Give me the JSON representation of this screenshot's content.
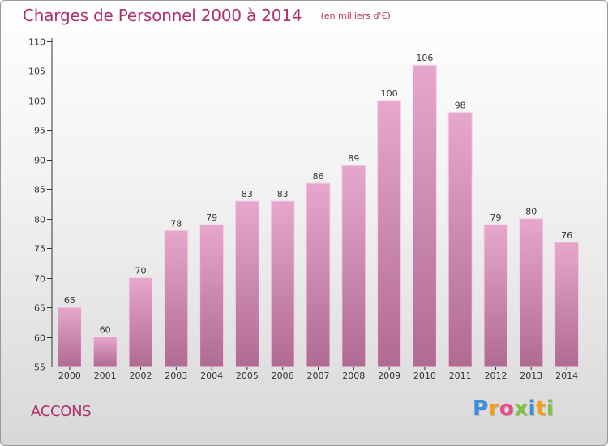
{
  "title": "Charges de Personnel 2000 à 2014",
  "subtitle": "(en milliers d'€)",
  "commune": "ACCONS",
  "logo": {
    "letters": [
      "P",
      "r",
      "o",
      "x",
      "i",
      "t",
      "i"
    ],
    "colors": [
      "#3a8fd6",
      "#f0a020",
      "#e84a8a",
      "#7cc243",
      "#3a8fd6",
      "#f0a020",
      "#7cc243"
    ]
  },
  "colors": {
    "bar_top": "#e7a7cd",
    "bar_bottom": "#b06b92",
    "accent": "#b0306e"
  },
  "chart_data": {
    "type": "bar",
    "categories": [
      "2000",
      "2001",
      "2002",
      "2003",
      "2004",
      "2005",
      "2006",
      "2007",
      "2008",
      "2009",
      "2010",
      "2011",
      "2012",
      "2013",
      "2014"
    ],
    "values": [
      65,
      60,
      70,
      78,
      79,
      83,
      83,
      86,
      89,
      100,
      106,
      98,
      79,
      80,
      76
    ],
    "data_labels": [
      "65",
      "60",
      "70",
      "78",
      "79",
      "83",
      "83",
      "86",
      "89",
      "100",
      "106",
      "98",
      "79",
      "80",
      "76"
    ],
    "ylim": [
      55,
      110
    ],
    "yticks": [
      55,
      60,
      65,
      70,
      75,
      80,
      85,
      90,
      95,
      100,
      105,
      110
    ],
    "ytick_labels": [
      "55",
      "60",
      "65",
      "70",
      "75",
      "80",
      "85",
      "90",
      "95",
      "100",
      "105",
      "110"
    ],
    "grid": false,
    "xlabel": "",
    "ylabel": ""
  }
}
